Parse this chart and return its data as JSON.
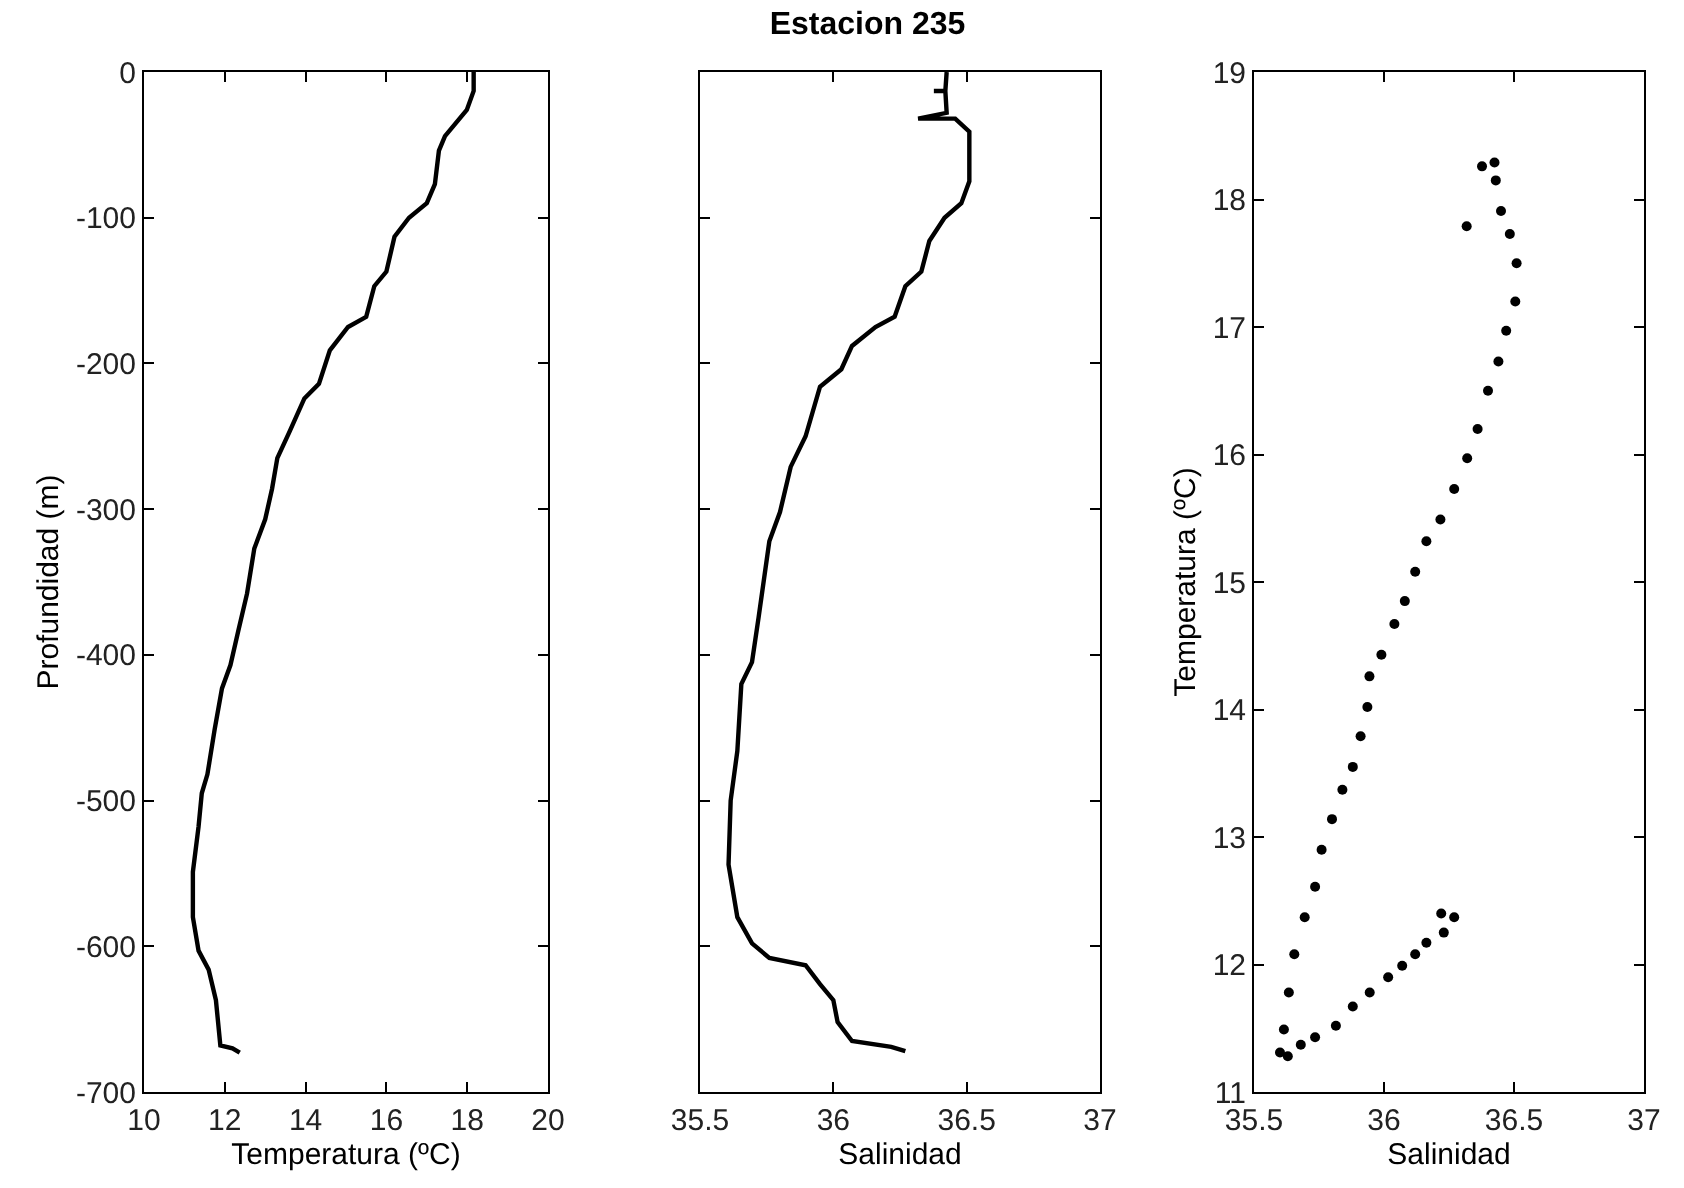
{
  "chart_data": [
    {
      "type": "line",
      "xlabel": "Temperatura (ºC)",
      "ylabel": "Profundidad (m)",
      "xlim": [
        10,
        20
      ],
      "xticks": [
        10,
        12,
        14,
        16,
        18,
        20
      ],
      "ylim": [
        -700,
        0
      ],
      "yticks": [
        -700,
        -600,
        -500,
        -400,
        -300,
        -200,
        -100,
        0
      ],
      "grid": false,
      "line_style": "solid",
      "marker": "none",
      "series": [
        {
          "color": "#000000",
          "x": [
            18.16,
            18.16,
            17.99,
            17.45,
            17.3,
            17.2,
            17.0,
            16.56,
            16.2,
            16.0,
            15.7,
            15.5,
            15.05,
            14.6,
            14.33,
            13.97,
            13.6,
            13.3,
            13.17,
            13.0,
            12.73,
            12.55,
            12.33,
            12.14,
            11.93,
            11.75,
            11.57,
            11.43,
            11.35,
            11.21,
            11.21,
            11.35,
            11.6,
            11.78,
            11.89,
            12.19,
            12.37
          ],
          "values": [
            0,
            -13,
            -26,
            -44,
            -54,
            -77,
            -90,
            -100,
            -113,
            -137,
            -147,
            -168,
            -175,
            -191,
            -214,
            -224,
            -247,
            -265,
            -286,
            -307,
            -327,
            -358,
            -384,
            -407,
            -423,
            -451,
            -482,
            -495,
            -518,
            -549,
            -580,
            -603,
            -616,
            -637,
            -668,
            -670,
            -673
          ]
        }
      ]
    },
    {
      "type": "line",
      "title": "Estacion 235",
      "xlabel": "Salinidad",
      "xlim": [
        35.5,
        37
      ],
      "xticks": [
        35.5,
        36,
        36.5,
        37
      ],
      "ylim": [
        -700,
        0
      ],
      "yticks": [
        -700,
        -600,
        -500,
        -400,
        -300,
        -200,
        -100,
        0
      ],
      "tick_labels": "x",
      "grid": false,
      "line_style": "solid",
      "marker": "none",
      "series": [
        {
          "color": "#000000",
          "x": [
            36.425,
            36.42,
            36.377,
            36.42,
            36.425,
            36.318,
            36.457,
            36.51,
            36.51,
            36.48,
            36.417,
            36.36,
            36.33,
            36.27,
            36.23,
            36.158,
            36.07,
            36.03,
            35.95,
            35.896,
            35.84,
            35.8,
            35.76,
            35.72,
            35.695,
            35.655,
            35.64,
            35.615,
            35.607,
            35.64,
            35.695,
            35.76,
            35.896,
            35.95,
            36.0,
            36.016,
            36.07,
            36.217,
            36.27
          ],
          "values": [
            0,
            -13,
            -13,
            -13,
            -28,
            -32,
            -32,
            -41,
            -75,
            -90,
            -100,
            -116,
            -137,
            -147,
            -168,
            -175,
            -188,
            -204,
            -216,
            -250,
            -271,
            -302,
            -322,
            -374,
            -405,
            -420,
            -466,
            -500,
            -544,
            -580,
            -598,
            -608,
            -613,
            -626,
            -637,
            -652,
            -665,
            -669,
            -672
          ]
        }
      ]
    },
    {
      "type": "scatter",
      "xlabel": "Salinidad",
      "ylabel": "Temperatura (ºC)",
      "xlim": [
        35.5,
        37
      ],
      "xticks": [
        35.5,
        36,
        36.5,
        37
      ],
      "ylim": [
        11,
        19
      ],
      "yticks": [
        11,
        12,
        13,
        14,
        15,
        16,
        17,
        18,
        19
      ],
      "grid": false,
      "marker": "circle",
      "series": [
        {
          "color": "#000000",
          "x": [
            36.425,
            36.377,
            36.318,
            36.43,
            36.45,
            36.484,
            36.51,
            36.505,
            36.47,
            36.44,
            36.4,
            36.36,
            36.32,
            36.27,
            36.217,
            36.163,
            36.12,
            36.08,
            36.04,
            35.99,
            35.944,
            35.936,
            35.91,
            35.88,
            35.84,
            35.8,
            35.76,
            35.735,
            35.695,
            35.655,
            35.634,
            35.615,
            35.6,
            35.63,
            35.68,
            35.735,
            35.815,
            35.88,
            35.945,
            36.016,
            36.07,
            36.12,
            36.163,
            36.23,
            36.22,
            36.27
          ],
          "values": [
            18.29,
            18.26,
            17.79,
            18.15,
            17.91,
            17.73,
            17.5,
            17.2,
            16.97,
            16.73,
            16.5,
            16.2,
            15.97,
            15.73,
            15.49,
            15.32,
            15.08,
            14.85,
            14.67,
            14.43,
            14.26,
            14.02,
            13.79,
            13.55,
            13.37,
            13.14,
            12.9,
            12.61,
            12.37,
            12.08,
            11.78,
            11.49,
            11.31,
            11.28,
            11.37,
            11.43,
            11.52,
            11.67,
            11.78,
            11.9,
            11.99,
            12.08,
            12.17,
            12.25,
            12.4,
            12.37
          ]
        }
      ]
    }
  ]
}
